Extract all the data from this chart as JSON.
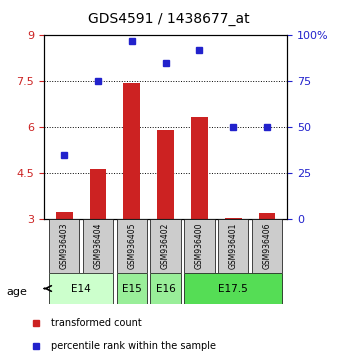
{
  "title": "GDS4591 / 1438677_at",
  "samples": [
    "GSM936403",
    "GSM936404",
    "GSM936405",
    "GSM936402",
    "GSM936400",
    "GSM936401",
    "GSM936406"
  ],
  "transformed_count": [
    3.25,
    4.65,
    7.45,
    5.92,
    6.35,
    3.05,
    3.2
  ],
  "percentile_rank": [
    35,
    75,
    97,
    85,
    92,
    50,
    50
  ],
  "age_groups": [
    {
      "label": "E14",
      "samples": [
        0,
        1
      ],
      "color": "#ccffcc"
    },
    {
      "label": "E15",
      "samples": [
        2
      ],
      "color": "#99ee99"
    },
    {
      "label": "E16",
      "samples": [
        3
      ],
      "color": "#99ee99"
    },
    {
      "label": "E17.5",
      "samples": [
        4,
        5,
        6
      ],
      "color": "#55dd55"
    }
  ],
  "ylim_left": [
    3,
    9
  ],
  "ylim_right": [
    0,
    100
  ],
  "yticks_left": [
    3,
    4.5,
    6,
    7.5,
    9
  ],
  "yticks_right": [
    0,
    25,
    50,
    75,
    100
  ],
  "ytick_labels_left": [
    "3",
    "4.5",
    "6",
    "7.5",
    "9"
  ],
  "ytick_labels_right": [
    "0",
    "25",
    "50",
    "75",
    "100%"
  ],
  "bar_color": "#cc2222",
  "dot_color": "#2222cc",
  "bar_width": 0.5,
  "grid_color": "black",
  "grid_style": "dotted",
  "sample_box_color": "#cccccc",
  "age_label": "age",
  "legend_bar_label": "transformed count",
  "legend_dot_label": "percentile rank within the sample"
}
